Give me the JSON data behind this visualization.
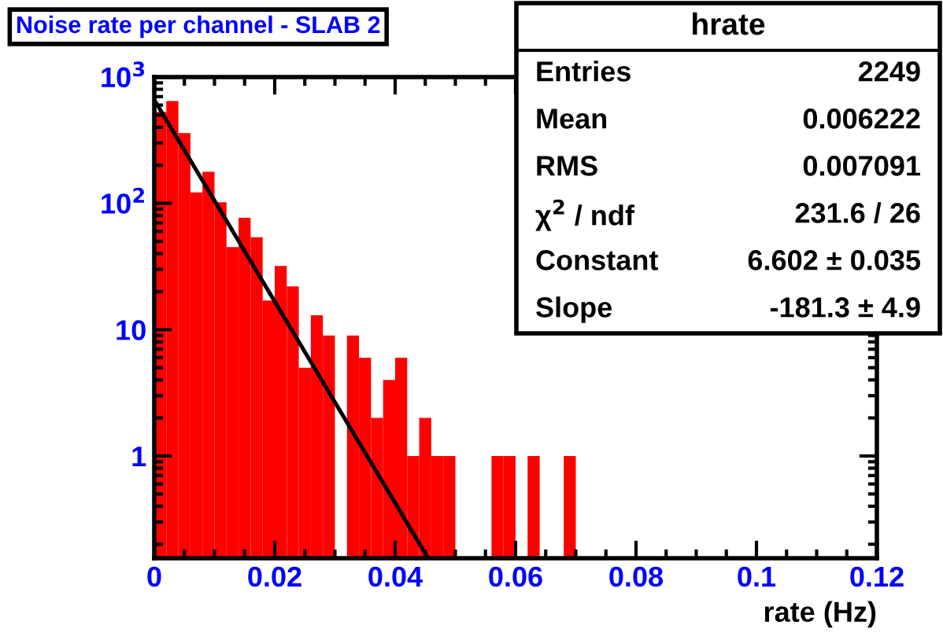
{
  "chart_data": {
    "type": "histogram",
    "title": "Noise rate per channel - SLAB 2",
    "xlabel": "rate (Hz)",
    "bins": [
      0,
      0.002,
      0.004,
      0.006,
      0.008,
      0.01,
      0.012,
      0.014,
      0.016,
      0.018,
      0.02,
      0.022,
      0.024,
      0.026,
      0.028,
      0.03,
      0.032,
      0.034,
      0.036,
      0.038,
      0.04,
      0.042,
      0.044,
      0.046,
      0.048,
      0.05,
      0.052,
      0.054,
      0.056,
      0.058,
      0.06,
      0.062,
      0.064,
      0.066,
      0.068,
      0.07,
      0.072,
      0.074,
      0.076,
      0.078,
      0.08,
      0.082,
      0.084,
      0.086,
      0.088,
      0.09,
      0.092,
      0.094,
      0.096,
      0.098,
      0.1,
      0.102,
      0.104,
      0.106,
      0.108,
      0.11,
      0.112,
      0.114,
      0.116,
      0.118,
      0.12
    ],
    "series": [
      {
        "color": "#ff0000",
        "values": [
          530,
          646,
          360,
          122,
          178,
          102,
          45,
          77,
          54,
          17,
          32,
          22,
          5,
          13,
          9,
          null,
          9,
          6,
          2,
          4,
          6,
          1,
          2,
          1,
          1,
          null,
          null,
          null,
          1,
          1,
          null,
          1,
          null,
          null,
          1,
          null,
          null,
          null,
          null,
          null,
          null,
          null,
          null,
          null,
          null,
          null,
          null,
          null,
          null,
          null,
          null,
          null,
          null,
          null,
          null,
          null,
          null,
          null,
          null,
          null
        ]
      },
      {
        "type": "line",
        "color": "#000000",
        "x": [
          0,
          0.0453
        ],
        "values": [
          660,
          0.16
        ]
      }
    ],
    "log": "y",
    "xlim": [
      0,
      0.12
    ],
    "ylim": [
      0.155,
      1000
    ],
    "xticks": [
      0,
      0.02,
      0.04,
      0.06,
      0.08,
      0.1,
      0.12
    ],
    "yticks": [
      {
        "value": 1,
        "label": "1"
      },
      {
        "value": 10,
        "label": "10"
      },
      {
        "value": 100,
        "label": "10$^{2}$"
      },
      {
        "value": 1000,
        "label": "10$^{3}$"
      }
    ],
    "grid": false,
    "annotations": [
      "hrate",
      "Entries",
      "2249",
      "Mean",
      "0.006222",
      "RMS",
      "0.007091",
      "χ$^{2}$ / ndf",
      "231.6 / 26",
      "Constant",
      "6.602 ± 0.035",
      "Slope",
      "-181.3 ± 4.9"
    ]
  }
}
